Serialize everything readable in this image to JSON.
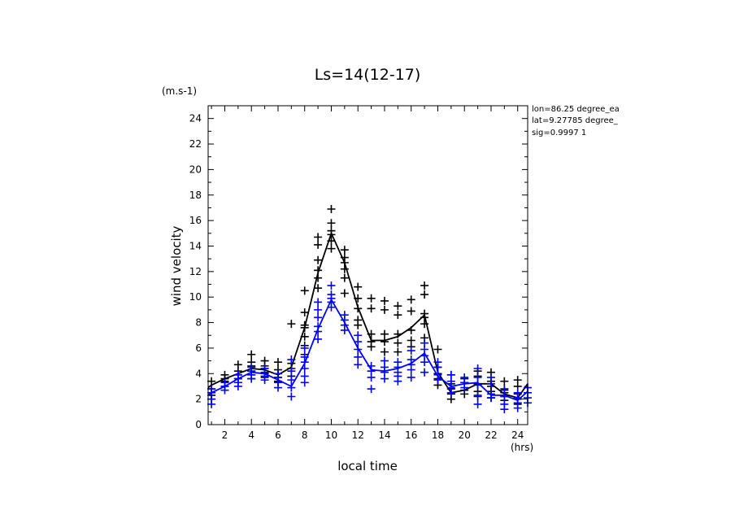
{
  "chart_data": {
    "type": "scatter",
    "title": "Ls=14(12-17)",
    "xlabel": "local time",
    "ylabel": "wind velocity",
    "x_unit": "(hrs)",
    "y_unit": "(m.s-1)",
    "xlim": [
      0.75,
      24.75
    ],
    "ylim": [
      0,
      25
    ],
    "x_ticks": [
      2,
      4,
      6,
      8,
      10,
      12,
      14,
      16,
      18,
      20,
      22,
      24
    ],
    "y_ticks": [
      0,
      2,
      4,
      6,
      8,
      10,
      12,
      14,
      16,
      18,
      20,
      22,
      24
    ],
    "annotations": [
      "lon=86.25 degree_ea",
      "lat=9.27785 degree_",
      "sig=0.9997 1"
    ],
    "grid": false,
    "series": [
      {
        "color": "#000000",
        "line_x": [
          0.75,
          1,
          2,
          3,
          4,
          5,
          6,
          7,
          8,
          9,
          10,
          11,
          12,
          13,
          14,
          15,
          16,
          17,
          18,
          19,
          20,
          21,
          22,
          23,
          24,
          24.75
        ],
        "line_y": [
          2.9,
          3.1,
          3.6,
          4.0,
          4.4,
          4.3,
          3.9,
          4.5,
          7.6,
          11.9,
          15.0,
          12.7,
          9.2,
          6.6,
          6.6,
          6.9,
          7.6,
          8.6,
          4.1,
          2.5,
          2.7,
          3.2,
          3.2,
          2.4,
          2.1,
          3.2
        ],
        "points": [
          [
            1,
            3.4
          ],
          [
            1,
            2.8
          ],
          [
            1,
            2.3
          ],
          [
            1,
            2.0
          ],
          [
            2,
            3.9
          ],
          [
            2,
            3.6
          ],
          [
            2,
            3.4
          ],
          [
            2,
            3.0
          ],
          [
            3,
            4.7
          ],
          [
            3,
            4.2
          ],
          [
            3,
            3.9
          ],
          [
            3,
            3.6
          ],
          [
            3,
            3.3
          ],
          [
            4,
            5.5
          ],
          [
            4,
            4.9
          ],
          [
            4,
            4.6
          ],
          [
            4,
            4.2
          ],
          [
            4,
            3.9
          ],
          [
            4,
            3.6
          ],
          [
            5,
            5.0
          ],
          [
            5,
            4.6
          ],
          [
            5,
            4.4
          ],
          [
            5,
            4.0
          ],
          [
            5,
            3.7
          ],
          [
            6,
            4.9
          ],
          [
            6,
            4.3
          ],
          [
            6,
            4.0
          ],
          [
            6,
            3.7
          ],
          [
            6,
            3.4
          ],
          [
            7,
            7.9
          ],
          [
            7,
            4.8
          ],
          [
            7,
            4.4
          ],
          [
            7,
            3.8
          ],
          [
            8,
            10.5
          ],
          [
            8,
            8.8
          ],
          [
            8,
            7.8
          ],
          [
            8,
            7.6
          ],
          [
            8,
            6.9
          ],
          [
            8,
            6.2
          ],
          [
            8,
            5.5
          ],
          [
            9,
            14.7
          ],
          [
            9,
            14.1
          ],
          [
            9,
            12.9
          ],
          [
            9,
            12.1
          ],
          [
            9,
            11.5
          ],
          [
            9,
            10.7
          ],
          [
            10,
            16.9
          ],
          [
            10,
            15.8
          ],
          [
            10,
            15.2
          ],
          [
            10,
            14.9
          ],
          [
            10,
            14.4
          ],
          [
            10,
            13.8
          ],
          [
            11,
            13.7
          ],
          [
            11,
            13.1
          ],
          [
            11,
            12.7
          ],
          [
            11,
            12.2
          ],
          [
            11,
            11.5
          ],
          [
            11,
            10.3
          ],
          [
            12,
            10.8
          ],
          [
            12,
            9.9
          ],
          [
            12,
            9.1
          ],
          [
            12,
            8.2
          ],
          [
            12,
            7.8
          ],
          [
            13,
            9.9
          ],
          [
            13,
            9.1
          ],
          [
            13,
            7.1
          ],
          [
            13,
            6.5
          ],
          [
            13,
            6.1
          ],
          [
            14,
            9.7
          ],
          [
            14,
            9.0
          ],
          [
            14,
            7.1
          ],
          [
            14,
            6.5
          ],
          [
            14,
            5.7
          ],
          [
            15,
            9.3
          ],
          [
            15,
            8.6
          ],
          [
            15,
            7.1
          ],
          [
            15,
            6.4
          ],
          [
            15,
            5.7
          ],
          [
            16,
            9.8
          ],
          [
            16,
            8.9
          ],
          [
            16,
            7.4
          ],
          [
            16,
            6.6
          ],
          [
            16,
            6.1
          ],
          [
            17,
            10.9
          ],
          [
            17,
            10.2
          ],
          [
            17,
            8.7
          ],
          [
            17,
            8.4
          ],
          [
            17,
            7.9
          ],
          [
            17,
            6.8
          ],
          [
            18,
            5.9
          ],
          [
            18,
            4.5
          ],
          [
            18,
            4.0
          ],
          [
            18,
            3.6
          ],
          [
            18,
            3.1
          ],
          [
            19,
            3.9
          ],
          [
            19,
            3.2
          ],
          [
            19,
            2.8
          ],
          [
            19,
            2.4
          ],
          [
            19,
            2.0
          ],
          [
            20,
            3.6
          ],
          [
            20,
            3.3
          ],
          [
            20,
            2.7
          ],
          [
            20,
            2.4
          ],
          [
            21,
            4.2
          ],
          [
            21,
            3.8
          ],
          [
            21,
            3.2
          ],
          [
            21,
            2.6
          ],
          [
            21,
            2.2
          ],
          [
            22,
            4.1
          ],
          [
            22,
            3.4
          ],
          [
            22,
            3.0
          ],
          [
            22,
            2.6
          ],
          [
            22,
            2.1
          ],
          [
            23,
            3.4
          ],
          [
            23,
            2.8
          ],
          [
            23,
            2.5
          ],
          [
            23,
            2.2
          ],
          [
            23,
            1.9
          ],
          [
            24,
            3.5
          ],
          [
            24,
            3.0
          ],
          [
            24,
            2.4
          ],
          [
            24,
            2.0
          ],
          [
            24,
            1.6
          ]
        ]
      },
      {
        "color": "#0000ff",
        "line_x": [
          0.75,
          1,
          2,
          3,
          4,
          5,
          6,
          7,
          8,
          9,
          10,
          11,
          12,
          13,
          14,
          15,
          16,
          17,
          18,
          19,
          20,
          21,
          22,
          23,
          24,
          24.75
        ],
        "line_y": [
          2.3,
          2.5,
          3.0,
          3.6,
          4.1,
          4.0,
          3.5,
          3.0,
          4.8,
          7.5,
          9.8,
          8.0,
          6.0,
          4.3,
          4.2,
          4.4,
          4.8,
          5.6,
          3.8,
          3.0,
          3.2,
          3.3,
          2.3,
          2.3,
          1.9,
          2.6
        ],
        "points": [
          [
            1,
            2.8
          ],
          [
            1,
            2.5
          ],
          [
            1,
            2.0
          ],
          [
            1,
            1.6
          ],
          [
            2,
            3.3
          ],
          [
            2,
            3.0
          ],
          [
            2,
            2.7
          ],
          [
            3,
            3.9
          ],
          [
            3,
            3.6
          ],
          [
            3,
            3.3
          ],
          [
            3,
            3.0
          ],
          [
            4,
            4.5
          ],
          [
            4,
            4.2
          ],
          [
            4,
            3.9
          ],
          [
            4,
            3.6
          ],
          [
            5,
            4.4
          ],
          [
            5,
            4.1
          ],
          [
            5,
            3.8
          ],
          [
            5,
            3.5
          ],
          [
            6,
            4.0
          ],
          [
            6,
            3.7
          ],
          [
            6,
            3.3
          ],
          [
            6,
            2.9
          ],
          [
            7,
            5.1
          ],
          [
            7,
            4.2
          ],
          [
            7,
            3.5
          ],
          [
            7,
            2.9
          ],
          [
            7,
            2.2
          ],
          [
            8,
            6.0
          ],
          [
            8,
            5.3
          ],
          [
            8,
            4.9
          ],
          [
            8,
            4.4
          ],
          [
            8,
            3.8
          ],
          [
            8,
            3.3
          ],
          [
            9,
            9.6
          ],
          [
            9,
            9.0
          ],
          [
            9,
            8.4
          ],
          [
            9,
            7.7
          ],
          [
            9,
            7.3
          ],
          [
            9,
            6.7
          ],
          [
            10,
            10.9
          ],
          [
            10,
            10.2
          ],
          [
            10,
            9.9
          ],
          [
            10,
            9.6
          ],
          [
            10,
            9.2
          ],
          [
            11,
            8.6
          ],
          [
            11,
            8.2
          ],
          [
            11,
            7.8
          ],
          [
            11,
            7.4
          ],
          [
            12,
            7.0
          ],
          [
            12,
            6.5
          ],
          [
            12,
            5.9
          ],
          [
            12,
            5.3
          ],
          [
            12,
            4.7
          ],
          [
            13,
            4.6
          ],
          [
            13,
            4.2
          ],
          [
            13,
            3.7
          ],
          [
            13,
            2.8
          ],
          [
            14,
            5.0
          ],
          [
            14,
            4.5
          ],
          [
            14,
            4.1
          ],
          [
            14,
            3.6
          ],
          [
            15,
            4.9
          ],
          [
            15,
            4.5
          ],
          [
            15,
            4.1
          ],
          [
            15,
            3.8
          ],
          [
            15,
            3.4
          ],
          [
            16,
            5.8
          ],
          [
            16,
            5.1
          ],
          [
            16,
            4.7
          ],
          [
            16,
            4.3
          ],
          [
            16,
            3.7
          ],
          [
            17,
            6.4
          ],
          [
            17,
            5.9
          ],
          [
            17,
            5.4
          ],
          [
            17,
            4.9
          ],
          [
            17,
            4.1
          ],
          [
            18,
            4.9
          ],
          [
            18,
            4.5
          ],
          [
            18,
            3.9
          ],
          [
            18,
            3.5
          ],
          [
            19,
            3.9
          ],
          [
            19,
            3.4
          ],
          [
            19,
            2.9
          ],
          [
            19,
            2.5
          ],
          [
            20,
            3.7
          ],
          [
            20,
            3.3
          ],
          [
            20,
            2.9
          ],
          [
            21,
            4.4
          ],
          [
            21,
            3.7
          ],
          [
            21,
            3.1
          ],
          [
            21,
            2.3
          ],
          [
            21,
            1.6
          ],
          [
            22,
            3.7
          ],
          [
            22,
            3.2
          ],
          [
            22,
            2.4
          ],
          [
            22,
            2.1
          ],
          [
            23,
            2.7
          ],
          [
            23,
            2.2
          ],
          [
            23,
            1.6
          ],
          [
            23,
            1.2
          ],
          [
            24,
            2.5
          ],
          [
            24,
            2.1
          ],
          [
            24,
            1.7
          ],
          [
            24,
            1.3
          ],
          [
            24.75,
            2.9
          ],
          [
            24.75,
            2.5
          ],
          [
            24.75,
            2.1
          ],
          [
            24.75,
            1.7
          ]
        ]
      }
    ]
  }
}
